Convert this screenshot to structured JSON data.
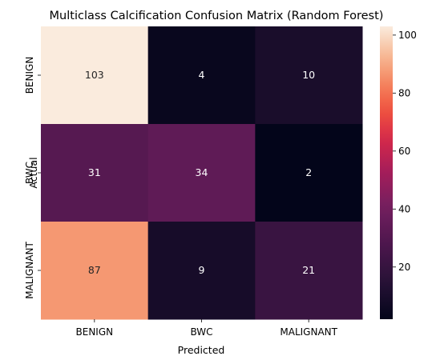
{
  "chart_data": {
    "type": "heatmap",
    "title": "Multiclass Calcification Confusion Matrix (Random Forest)",
    "xlabel": "Predicted",
    "ylabel": "Actual",
    "x_categories": [
      "BENIGN",
      "BWC",
      "MALIGNANT"
    ],
    "y_categories": [
      "BENIGN",
      "BWC",
      "MALIGNANT"
    ],
    "values": [
      [
        103,
        4,
        10
      ],
      [
        31,
        34,
        2
      ],
      [
        87,
        9,
        21
      ]
    ],
    "colorbar": {
      "colormap": "rocket",
      "range": [
        2,
        103
      ],
      "ticks": [
        "20",
        "40",
        "60",
        "80",
        "100"
      ]
    }
  }
}
